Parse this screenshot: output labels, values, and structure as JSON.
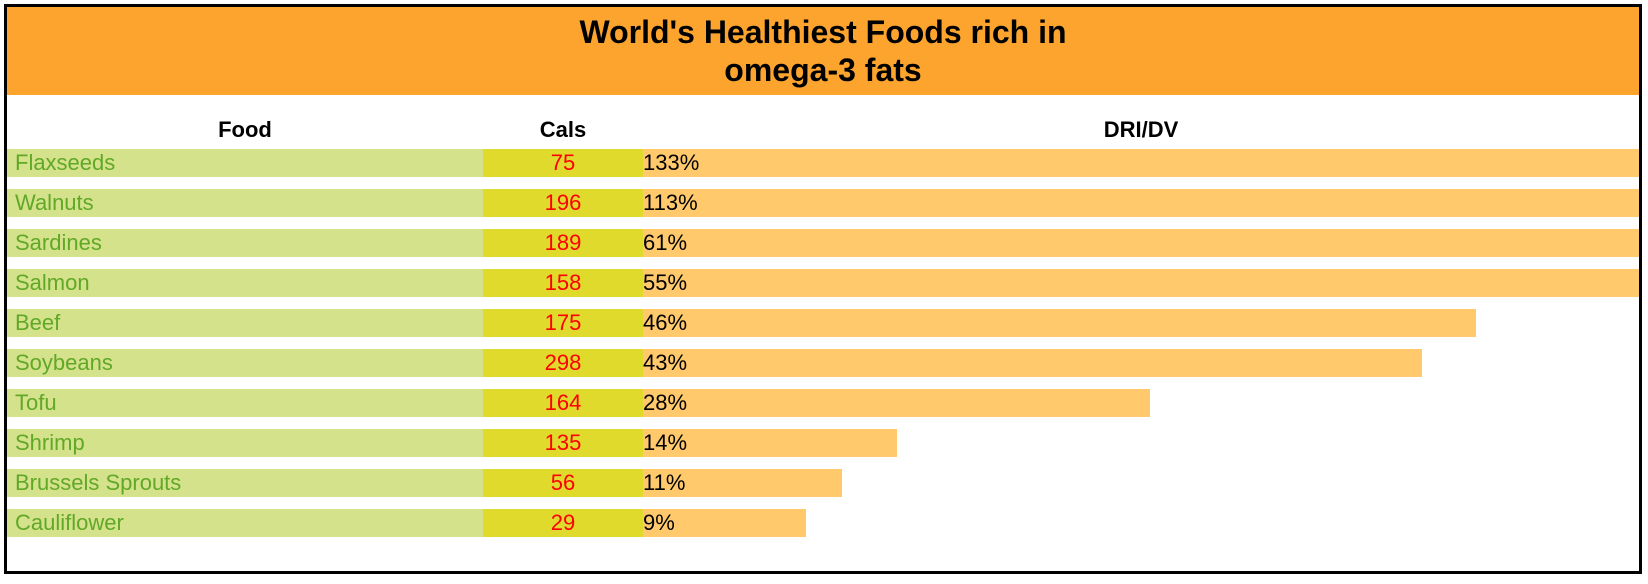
{
  "title_lines": [
    "World's Healthiest Foods rich in",
    "omega-3 fats"
  ],
  "headers": {
    "food": "Food",
    "cals": "Cals",
    "dri": "DRI/DV"
  },
  "colors": {
    "title_bg": "#fca42e",
    "food_bg": "#d4e28c",
    "food_text": "#62a827",
    "cals_bg": "#e0da2d",
    "cals_text": "#ff0000",
    "bar": "#ffc96c"
  },
  "chart_data": {
    "type": "bar",
    "orientation": "horizontal",
    "title": "World's Healthiest Foods rich in omega-3 fats",
    "categories": [
      "Flaxseeds",
      "Walnuts",
      "Sardines",
      "Salmon",
      "Beef",
      "Soybeans",
      "Tofu",
      "Shrimp",
      "Brussels Sprouts",
      "Cauliflower"
    ],
    "calories": [
      75,
      196,
      189,
      158,
      175,
      298,
      164,
      135,
      56,
      29
    ],
    "dri_labels": [
      "133%",
      "113%",
      "61%",
      "55%",
      "46%",
      "43%",
      "28%",
      "14%",
      "11%",
      "9%"
    ],
    "values": [
      133,
      113,
      61,
      55,
      46,
      43,
      28,
      14,
      11,
      9
    ],
    "bar_max": 55
  }
}
